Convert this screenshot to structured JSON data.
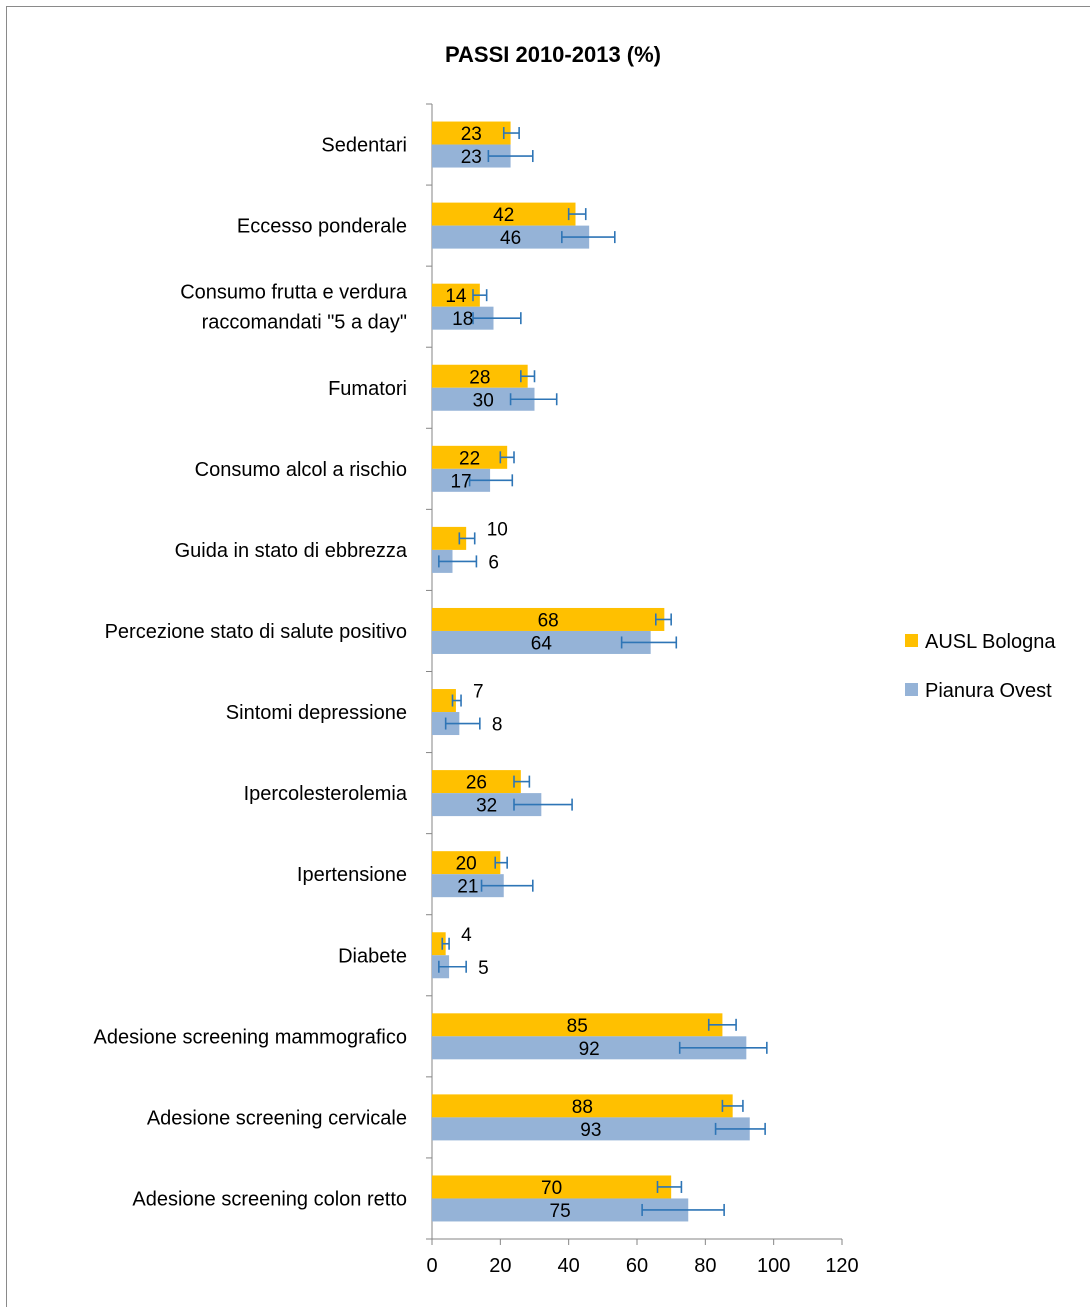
{
  "chart_data": {
    "type": "bar",
    "orientation": "horizontal",
    "title": "PASSI 2010-2013 (%)",
    "xlabel": "",
    "ylabel": "",
    "xlim": [
      0,
      120
    ],
    "x_ticks": [
      "0",
      "20",
      "40",
      "60",
      "80",
      "100",
      "120"
    ],
    "grid": false,
    "legend_position": "right",
    "categories": [
      "Sedentari",
      "Eccesso ponderale",
      "Consumo frutta e verdura raccomandati \"5 a day\"",
      "Fumatori",
      "Consumo alcol a rischio",
      "Guida in stato di ebbrezza",
      "Percezione stato di salute positivo",
      "Sintomi depressione",
      "Ipercolesterolemia",
      "Ipertensione",
      "Diabete",
      "Adesione screening mammografico",
      "Adesione screening cervicale",
      "Adesione screening colon retto"
    ],
    "category_lines": [
      [
        "Sedentari"
      ],
      [
        "Eccesso ponderale"
      ],
      [
        "Consumo frutta e verdura",
        "raccomandati \"5 a day\""
      ],
      [
        "Fumatori"
      ],
      [
        "Consumo alcol a rischio"
      ],
      [
        "Guida in stato di ebbrezza"
      ],
      [
        "Percezione stato di salute positivo"
      ],
      [
        "Sintomi depressione"
      ],
      [
        "Ipercolesterolemia"
      ],
      [
        "Ipertensione"
      ],
      [
        "Diabete"
      ],
      [
        "Adesione screening mammografico"
      ],
      [
        "Adesione screening cervicale"
      ],
      [
        "Adesione screening colon retto"
      ]
    ],
    "series": [
      {
        "name": "AUSL Bologna",
        "color": "#FFC000",
        "values": [
          23,
          42,
          14,
          28,
          22,
          10,
          68,
          7,
          26,
          20,
          4,
          85,
          88,
          70
        ],
        "ci_low": [
          21,
          40,
          12,
          26,
          20,
          8,
          65.5,
          6,
          24,
          18.5,
          3,
          81,
          85,
          66
        ],
        "ci_high": [
          25.5,
          45,
          16,
          30,
          24,
          12.5,
          70,
          8.5,
          28.5,
          22,
          5,
          89,
          91,
          73
        ]
      },
      {
        "name": "Pianura Ovest",
        "color": "#95B3D7",
        "values": [
          23,
          46,
          18,
          30,
          17,
          6,
          64,
          8,
          32,
          21,
          5,
          92,
          93,
          75
        ],
        "ci_low": [
          16.5,
          38,
          12,
          23,
          11,
          2,
          55.5,
          4,
          24,
          14.5,
          2,
          72.5,
          83,
          61.5
        ],
        "ci_high": [
          29.5,
          53.5,
          26,
          36.5,
          23.5,
          13,
          71.5,
          14,
          41,
          29.5,
          10,
          98,
          97.5,
          85.5
        ]
      }
    ],
    "error_bar_color": "#2E75B6"
  }
}
